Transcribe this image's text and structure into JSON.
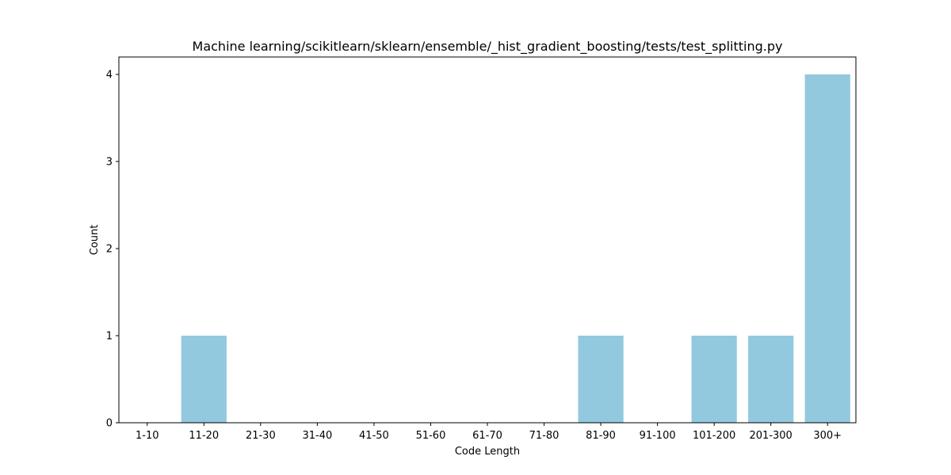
{
  "chart_data": {
    "type": "bar",
    "title": "Machine learning/scikitlearn/sklearn/ensemble/_hist_gradient_boosting/tests/test_splitting.py",
    "xlabel": "Code Length",
    "ylabel": "Count",
    "categories": [
      "1-10",
      "11-20",
      "21-30",
      "31-40",
      "41-50",
      "51-60",
      "61-70",
      "71-80",
      "81-90",
      "91-100",
      "101-200",
      "201-300",
      "300+"
    ],
    "values": [
      0,
      1,
      0,
      0,
      0,
      0,
      0,
      0,
      1,
      0,
      1,
      1,
      4
    ],
    "ylim": [
      0,
      4.2
    ],
    "yticks": [
      0,
      1,
      2,
      3,
      4
    ],
    "grid": false,
    "bar_color": "#92c9df"
  }
}
